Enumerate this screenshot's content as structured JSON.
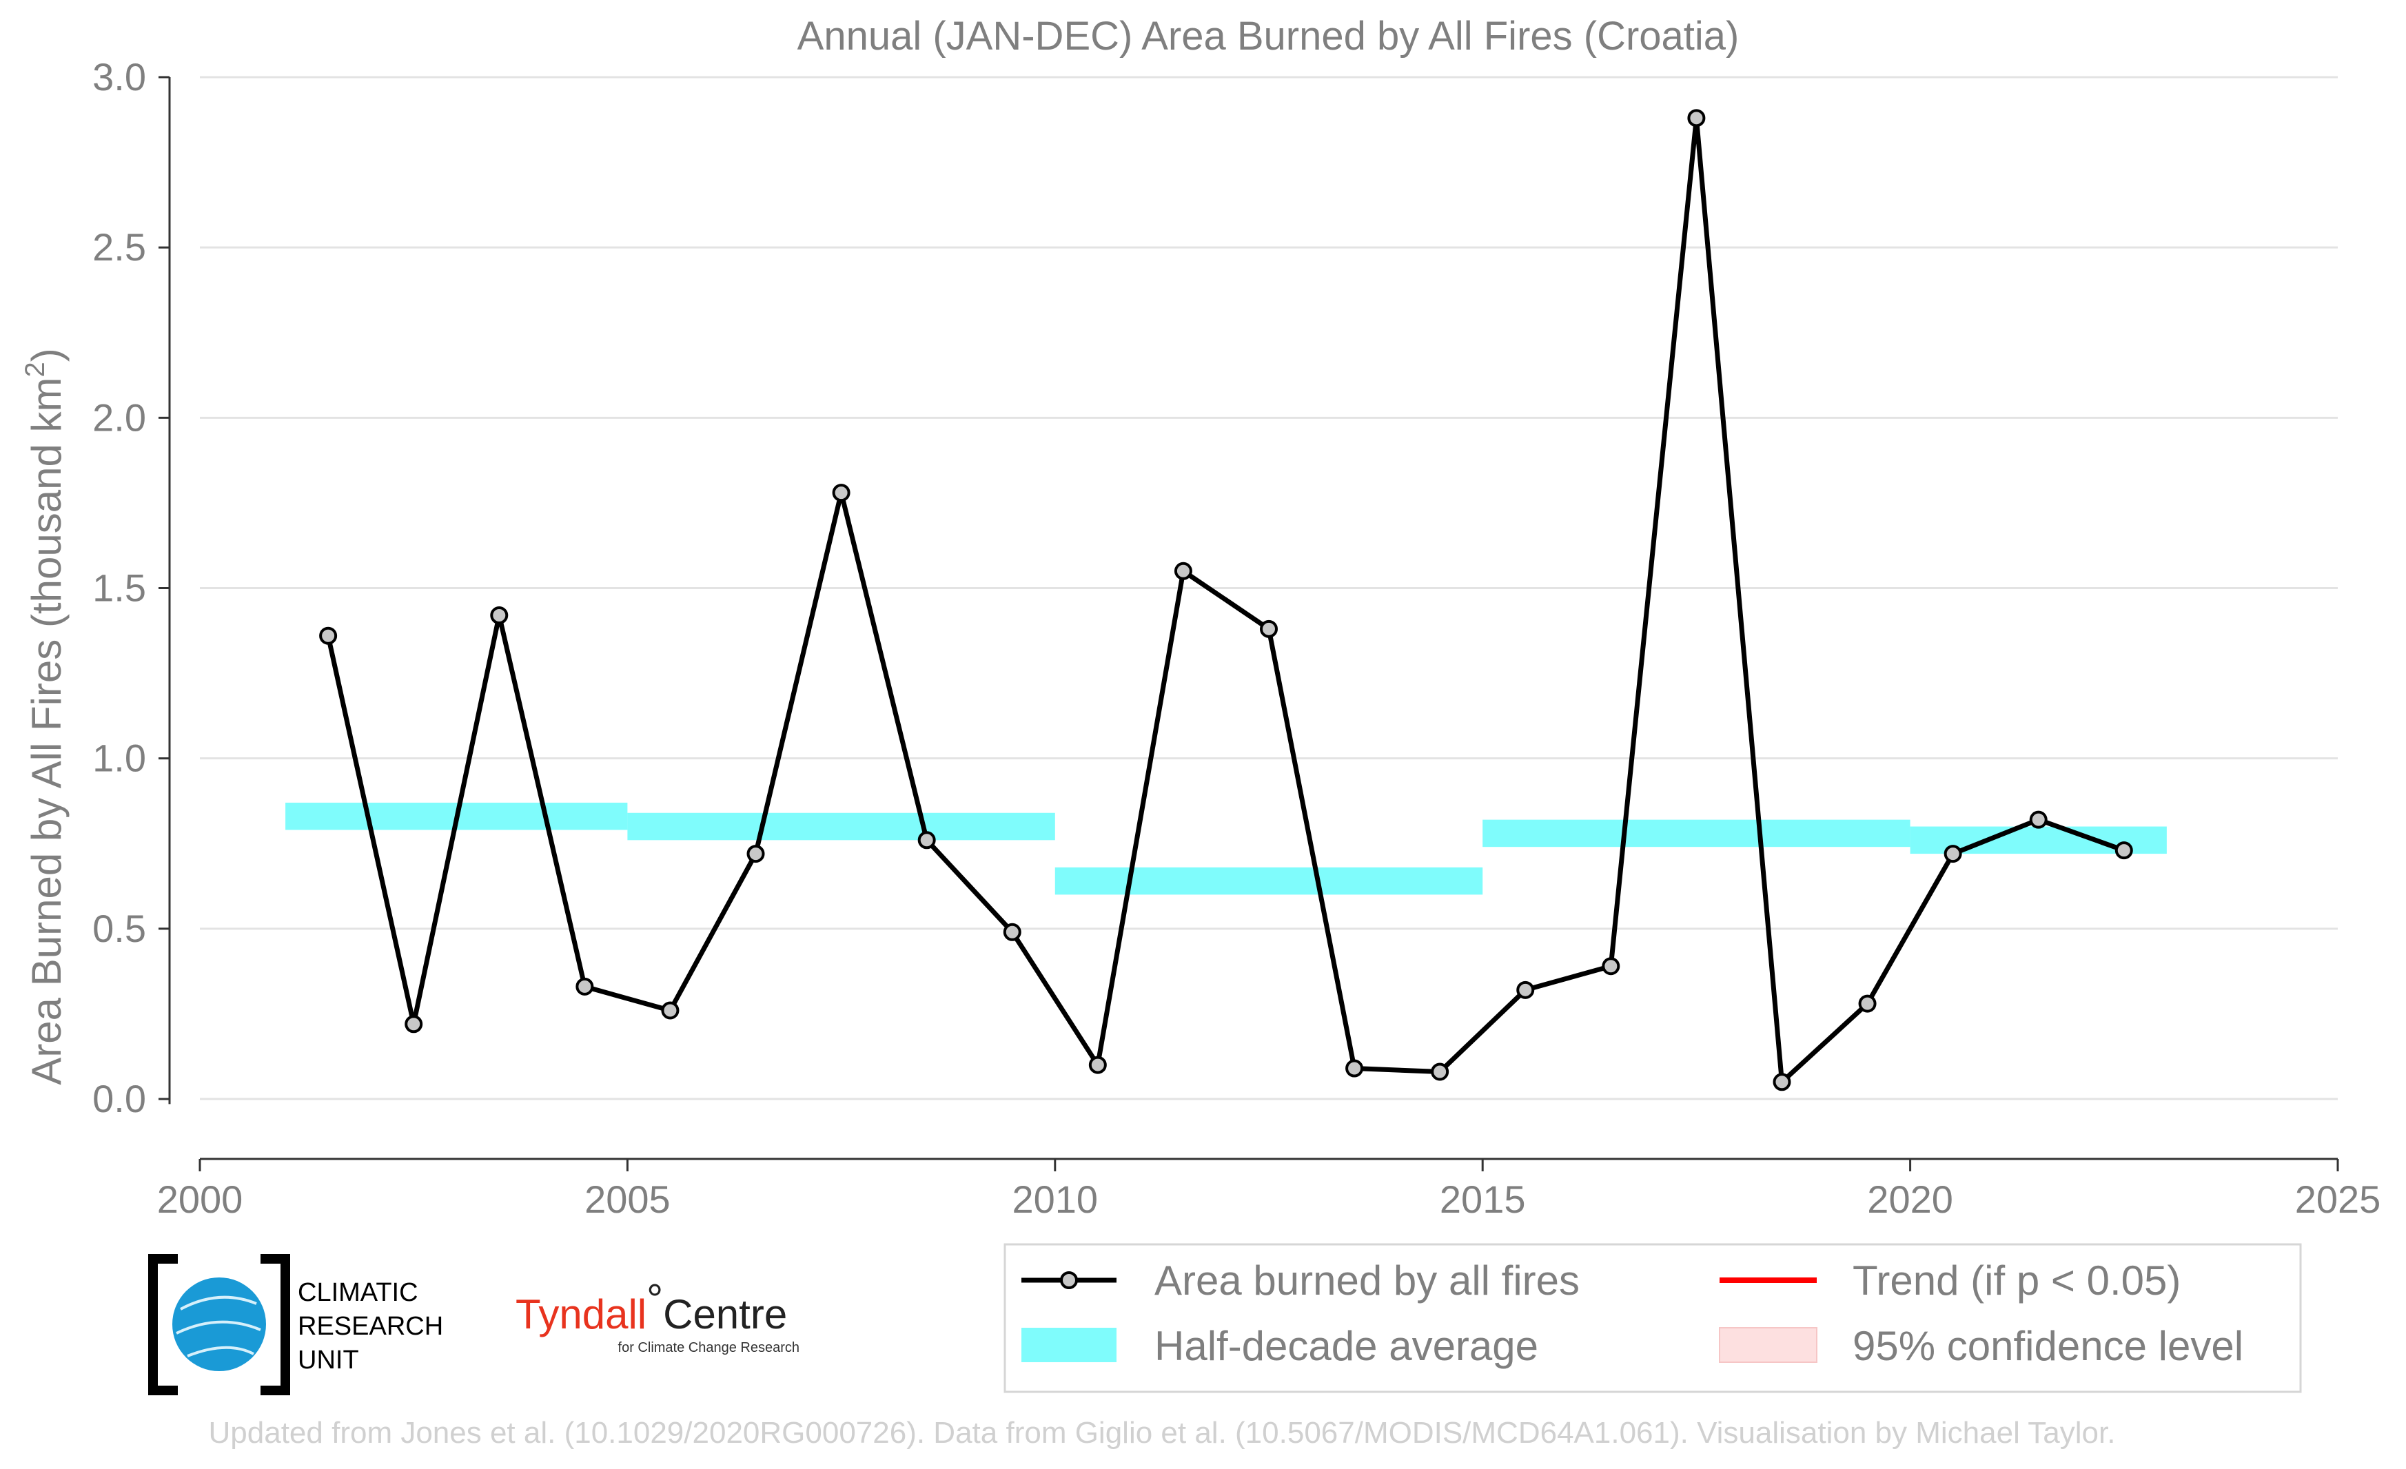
{
  "chart_data": {
    "type": "line",
    "title": "Annual (JAN-DEC) Area Burned by All Fires (Croatia)",
    "ylabel_main": "Area Burned by All Fires (thousand km",
    "ylabel_sup": "2",
    "ylabel_close": ")",
    "xlabel": "",
    "xlim": [
      2000,
      2025
    ],
    "ylim": [
      -0.1,
      3.0
    ],
    "grid": "horizontal",
    "legend_placement": "bottom-right",
    "x_ticks": [
      "2000",
      "2005",
      "2010",
      "2015",
      "2020",
      "2025"
    ],
    "y_ticks": [
      "0.0",
      "0.5",
      "1.0",
      "1.5",
      "2.0",
      "2.5",
      "3.0"
    ],
    "series": [
      {
        "name": "Area burned by all fires",
        "x": [
          2001.5,
          2002.5,
          2003.5,
          2004.5,
          2005.5,
          2006.5,
          2007.5,
          2008.5,
          2009.5,
          2010.5,
          2011.5,
          2012.5,
          2013.5,
          2014.5,
          2015.5,
          2016.5,
          2017.5,
          2018.5,
          2019.5,
          2020.5,
          2021.5,
          2022.5
        ],
        "values": [
          1.36,
          0.22,
          1.42,
          0.33,
          0.26,
          0.72,
          1.78,
          0.76,
          0.49,
          0.1,
          1.55,
          1.38,
          0.09,
          0.08,
          0.32,
          0.39,
          2.88,
          0.05,
          0.28,
          0.72,
          0.82,
          0.73
        ]
      },
      {
        "name": "Half-decade average",
        "segments": [
          {
            "x0": 2001,
            "x1": 2005,
            "value": 0.83
          },
          {
            "x0": 2005,
            "x1": 2010,
            "value": 0.8
          },
          {
            "x0": 2010,
            "x1": 2015,
            "value": 0.64
          },
          {
            "x0": 2015,
            "x1": 2020,
            "value": 0.78
          },
          {
            "x0": 2020,
            "x1": 2023,
            "value": 0.76
          }
        ]
      }
    ],
    "legend": [
      {
        "label": "Area burned by all fires",
        "style": "line-marker"
      },
      {
        "label": "Trend (if p < 0.05)",
        "style": "red-line"
      },
      {
        "label": "Half-decade average",
        "style": "cyan-band"
      },
      {
        "label": "95% confidence level",
        "style": "pink-band"
      }
    ]
  },
  "colors": {
    "line": "#000000",
    "marker_fill": "#c8c8c8",
    "half_decade": "#7ffcfc",
    "trend": "#ff0000",
    "confidence": "#fde0e0",
    "grid": "#e3e3e3",
    "text": "#7f7f7f"
  },
  "logos": {
    "cru_lines": [
      "CLIMATIC",
      "RESEARCH",
      "UNIT"
    ],
    "tyndall_main": "Tyndall",
    "tyndall_degree": "°",
    "tyndall_centre": "Centre",
    "tyndall_sub": "for Climate Change Research"
  },
  "credit": "Updated from Jones et al. (10.1029/2020RG000726). Data from Giglio et al. (10.5067/MODIS/MCD64A1.061). Visualisation by Michael Taylor."
}
